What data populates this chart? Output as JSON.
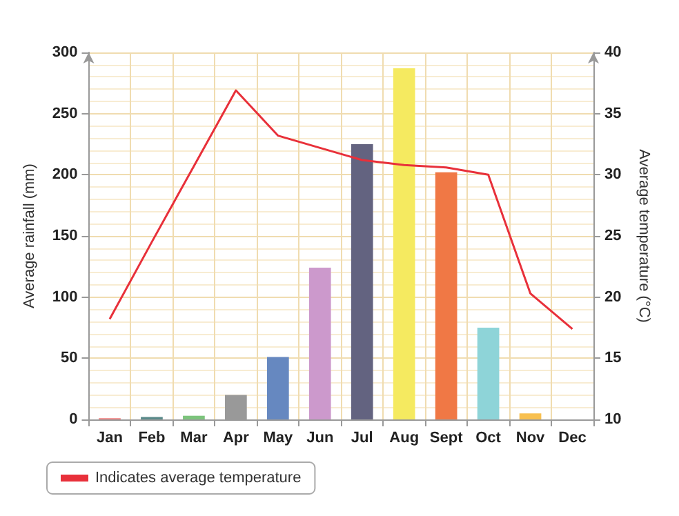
{
  "chart_data": {
    "type": "bar",
    "categories": [
      "Jan",
      "Feb",
      "Mar",
      "Apr",
      "May",
      "Jun",
      "Jul",
      "Aug",
      "Sept",
      "Oct",
      "Nov",
      "Dec"
    ],
    "ylabel": "Average rainfall (mm)",
    "y2label": "Average temperature (°C)",
    "series": [
      {
        "colors": [
          "#f08080",
          "#5a8a8a",
          "#7cc47c",
          "#999999",
          "#6688c0",
          "#cc99cc",
          "#636380",
          "#f5ea60",
          "#f07845",
          "#8ed4d8",
          "#f8c050",
          "#cccccc"
        ],
        "values": [
          1,
          2,
          3,
          20,
          51,
          124,
          225,
          287,
          202,
          75,
          5,
          0
        ]
      },
      {
        "type": "line",
        "axis": "y2",
        "name": "Indicates average temperature",
        "color": "#e8303a",
        "values": [
          18.2,
          24.5,
          30.7,
          36.9,
          33.2,
          32.2,
          31.2,
          30.8,
          30.6,
          30.0,
          20.3,
          17.4
        ]
      }
    ],
    "ylim": [
      0,
      300
    ],
    "yticks": [
      0,
      50,
      100,
      150,
      200,
      250,
      300
    ],
    "y2lim": [
      10,
      40
    ],
    "y2ticks": [
      10,
      15,
      20,
      25,
      30,
      35,
      40
    ],
    "grid": true,
    "legend": "bottom left",
    "marker": "none",
    "line_style": "solid"
  }
}
